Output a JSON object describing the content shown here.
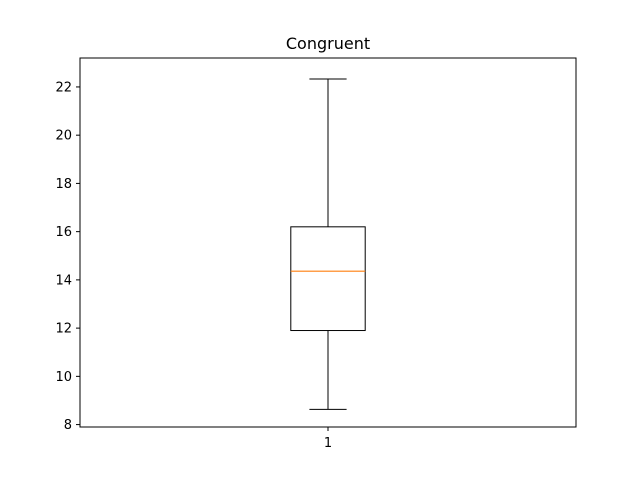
{
  "chart_data": {
    "type": "box",
    "title": "Congruent",
    "xlabel": "",
    "ylabel": "",
    "categories": [
      "1"
    ],
    "ylim": [
      7.9,
      23.2
    ],
    "yticks": [
      8,
      10,
      12,
      14,
      16,
      18,
      20,
      22
    ],
    "grid": false,
    "boxes": [
      {
        "label": "1",
        "whisker_low": 8.63,
        "q1": 11.9,
        "median": 14.36,
        "q3": 16.2,
        "whisker_high": 22.33
      }
    ],
    "colors": {
      "median": "#ff7f0e",
      "box": "#000000",
      "axes": "#000000"
    }
  }
}
